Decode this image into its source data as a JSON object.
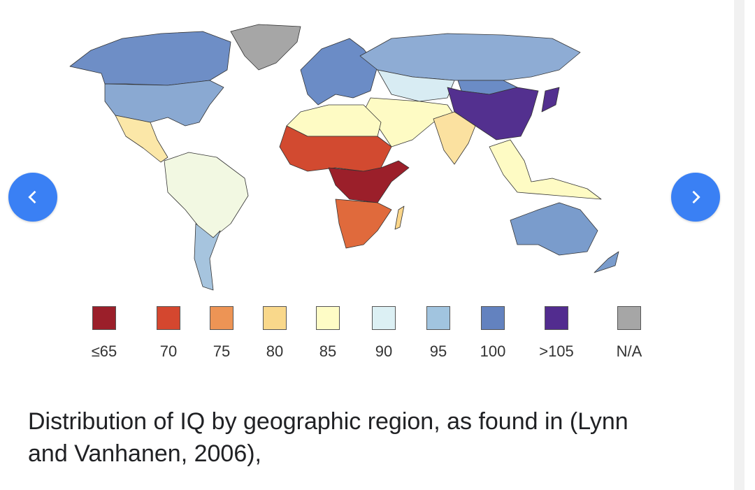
{
  "carousel": {
    "prev_icon": "chevron-left-icon",
    "next_icon": "chevron-right-icon",
    "button_color": "#3a80f4"
  },
  "map": {
    "region_colors": {
      "canada": "#6e8ec6",
      "usa": "#8aa9d2",
      "greenland": "#a6a6a6",
      "europe": "#6b8cc6",
      "russia": "#8eacd4",
      "central_asia": "#d8ecf3",
      "china": "#53308f",
      "mongolia": "#6b8cc6",
      "middle_east": "#fefbc4",
      "india": "#fbe1a0",
      "southeast_asia": "#fefbc4",
      "north_africa": "#fefbc4",
      "west_africa": "#d24a30",
      "central_africa": "#9b1f2a",
      "southern_africa": "#e06a3c",
      "madagascar": "#fbd68a",
      "central_america": "#fbe7a8",
      "south_america": "#f2f8e2",
      "southern_cone": "#a6c4de",
      "australia": "#7a9ccc"
    }
  },
  "legend": [
    {
      "label": "≤65",
      "color": "#9b1f2a"
    },
    {
      "label": "70",
      "color": "#d4472f"
    },
    {
      "label": "75",
      "color": "#ed9455"
    },
    {
      "label": "80",
      "color": "#f9d88b"
    },
    {
      "label": "85",
      "color": "#fefcc6"
    },
    {
      "label": "90",
      "color": "#dcf0f4"
    },
    {
      "label": "95",
      "color": "#a1c4df"
    },
    {
      "label": "100",
      "color": "#6382bf"
    },
    {
      "label": ">105",
      "color": "#522c8f"
    },
    {
      "label": "N/A",
      "color": "#a6a6a6"
    }
  ],
  "caption": {
    "line1": "Distribution of IQ by geographic region, as found in (Lynn",
    "line2": "and Vanhanen, 2006),"
  }
}
